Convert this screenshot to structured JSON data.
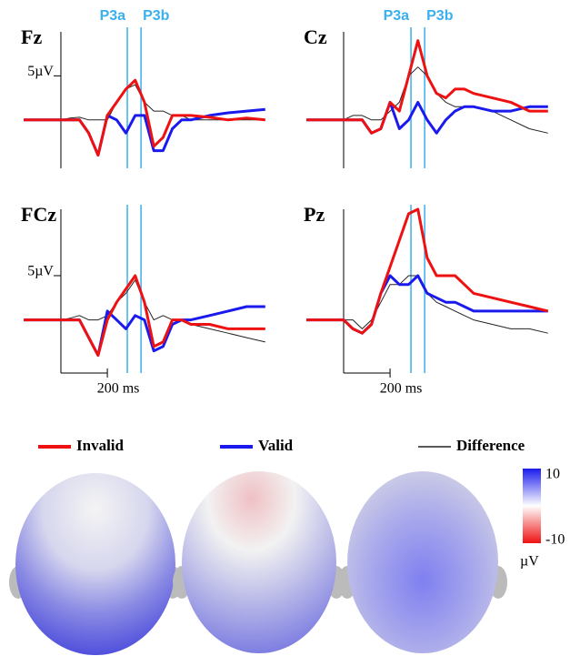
{
  "chart_data": [
    {
      "type": "line",
      "title": "Fz",
      "x": [
        -160,
        -80,
        0,
        40,
        80,
        120,
        160,
        200,
        240,
        280,
        320,
        360,
        400,
        440,
        480,
        520,
        560,
        640,
        720,
        800,
        880
      ],
      "series": [
        {
          "name": "Invalid",
          "color": "#ee1111",
          "values": [
            0,
            0,
            0,
            0,
            0,
            -1.5,
            -4,
            0.5,
            2,
            3.5,
            4.5,
            2,
            -3,
            -2,
            0.5,
            0.5,
            0.5,
            0.3,
            0,
            0.2,
            0
          ]
        },
        {
          "name": "Valid",
          "color": "#1a1aee",
          "values": [
            0,
            0,
            0,
            0,
            0,
            -1.5,
            -4,
            0.5,
            0,
            -1.5,
            0.5,
            0.5,
            -3.5,
            -3.5,
            -1,
            0,
            0,
            0.5,
            0.8,
            1,
            1.2
          ]
        },
        {
          "name": "Difference",
          "color": "#222222",
          "values": [
            0,
            0,
            0,
            0.2,
            0.3,
            0,
            0,
            0,
            2,
            3.5,
            4,
            2,
            1,
            1,
            0.5,
            0.5,
            0,
            0,
            0,
            0,
            0
          ]
        }
      ],
      "xlim": [
        -180,
        920
      ],
      "ylim": [
        -5.5,
        10
      ],
      "yticks": [
        {
          "value": 5,
          "label": "5µV"
        }
      ],
      "markers": [
        {
          "label": "P3a",
          "x": 286
        },
        {
          "label": "P3b",
          "x": 345
        }
      ]
    },
    {
      "type": "line",
      "title": "Cz",
      "x": [
        -160,
        -80,
        0,
        40,
        80,
        120,
        160,
        200,
        240,
        280,
        320,
        360,
        400,
        440,
        480,
        520,
        560,
        640,
        720,
        800,
        880
      ],
      "series": [
        {
          "name": "Invalid",
          "color": "#ee1111",
          "values": [
            0,
            0,
            0,
            0,
            0,
            -1.5,
            -1,
            2,
            1,
            5,
            9,
            5,
            3,
            2.5,
            3.5,
            3.5,
            3,
            2.5,
            2,
            1,
            1
          ]
        },
        {
          "name": "Valid",
          "color": "#1a1aee",
          "values": [
            0,
            0,
            0,
            0,
            0,
            -1.5,
            -1,
            2,
            -1,
            0,
            2,
            0,
            -1.5,
            0,
            1,
            1.5,
            1.5,
            1,
            1,
            1.5,
            1.5
          ]
        },
        {
          "name": "Difference",
          "color": "#222222",
          "values": [
            0,
            0,
            0,
            0.5,
            0.5,
            0,
            0,
            1,
            2,
            5,
            6,
            5,
            3,
            2,
            1.5,
            1.5,
            1.5,
            1,
            0,
            -1,
            -1.5
          ]
        }
      ],
      "xlim": [
        -180,
        920
      ],
      "ylim": [
        -5.5,
        10
      ],
      "markers": [
        {
          "label": "P3a",
          "x": 290
        },
        {
          "label": "P3b",
          "x": 349
        }
      ]
    },
    {
      "type": "line",
      "title": "FCz",
      "x": [
        -160,
        -80,
        0,
        40,
        80,
        120,
        160,
        200,
        240,
        280,
        320,
        360,
        400,
        440,
        480,
        520,
        560,
        640,
        720,
        800,
        880
      ],
      "series": [
        {
          "name": "Invalid",
          "color": "#ee1111",
          "values": [
            0,
            0,
            0,
            0,
            0,
            -2,
            -4,
            0,
            2,
            3.5,
            5,
            2,
            -3,
            -2.5,
            0,
            0,
            -0.5,
            -0.5,
            -1,
            -1,
            -1
          ]
        },
        {
          "name": "Valid",
          "color": "#1a1aee",
          "values": [
            0,
            0,
            0,
            0,
            0,
            -2,
            -4,
            1,
            0,
            -1,
            0.5,
            0,
            -3.5,
            -3,
            -0.5,
            0,
            0,
            0.5,
            1,
            1.5,
            1.5
          ]
        },
        {
          "name": "Difference",
          "color": "#222222",
          "values": [
            0,
            0,
            0,
            0.2,
            0.5,
            0,
            0,
            0.5,
            2,
            3,
            4.5,
            2,
            0,
            0.5,
            0,
            0,
            -0.5,
            -1,
            -1.5,
            -2,
            -2.5
          ]
        }
      ],
      "xlim": [
        -180,
        920
      ],
      "ylim": [
        -6,
        12.5
      ],
      "yticks": [
        {
          "value": 5,
          "label": "5µV"
        }
      ],
      "xticks": [
        {
          "value": 200,
          "label": "200 ms"
        }
      ],
      "markers": [
        {
          "x": 286
        },
        {
          "x": 345
        }
      ]
    },
    {
      "type": "line",
      "title": "Pz",
      "x": [
        -160,
        -80,
        0,
        40,
        80,
        120,
        160,
        200,
        240,
        280,
        320,
        360,
        400,
        440,
        480,
        520,
        560,
        640,
        720,
        800,
        880
      ],
      "series": [
        {
          "name": "Invalid",
          "color": "#ee1111",
          "values": [
            0,
            0,
            0,
            -1,
            -1.5,
            -0.5,
            3,
            6,
            9,
            12,
            12.5,
            7,
            5,
            5,
            5,
            4,
            3,
            2.5,
            2,
            1.5,
            1
          ]
        },
        {
          "name": "Valid",
          "color": "#1a1aee",
          "values": [
            0,
            0,
            0,
            -1,
            -1.5,
            -0.5,
            3,
            5,
            4,
            4,
            5,
            3,
            2.5,
            2,
            2,
            1.5,
            1,
            1,
            1,
            1,
            1
          ]
        },
        {
          "name": "Difference",
          "color": "#222222",
          "values": [
            0,
            0,
            0,
            0,
            -1,
            0,
            2,
            4,
            4,
            5,
            5,
            3,
            2,
            1.5,
            1,
            0.5,
            0,
            -0.5,
            -1,
            -1,
            -1.5
          ]
        }
      ],
      "xlim": [
        -180,
        920
      ],
      "ylim": [
        -6,
        12.5
      ],
      "xticks": [
        {
          "value": 200,
          "label": "200 ms"
        }
      ],
      "markers": [
        {
          "x": 290
        },
        {
          "x": 349
        }
      ]
    }
  ],
  "colorbar": {
    "max": 10,
    "min": -10,
    "unit": "µV"
  }
}
